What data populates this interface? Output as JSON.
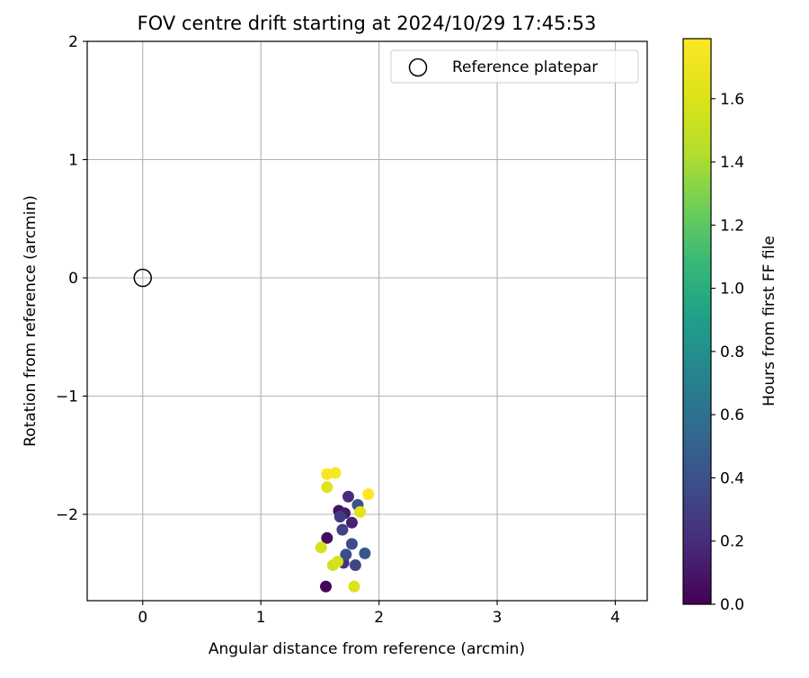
{
  "chart_data": {
    "type": "scatter",
    "title": "FOV centre drift starting at 2024/10/29 17:45:53",
    "xlabel": "Angular distance from reference (arcmin)",
    "ylabel": "Rotation from reference (arcmin)",
    "xlim": [
      -0.47,
      4.27
    ],
    "ylim": [
      -2.73,
      2.0
    ],
    "xticks": [
      0,
      1,
      2,
      3,
      4
    ],
    "yticks": [
      -2,
      -1,
      0,
      1,
      2
    ],
    "x_tick_labels": [
      "0",
      "1",
      "2",
      "3",
      "4"
    ],
    "y_tick_labels": [
      "−2",
      "−1",
      "0",
      "1",
      "2"
    ],
    "grid": true,
    "legend": {
      "position": "top-right",
      "entries": [
        {
          "label": "Reference platepar",
          "marker": "open-circle"
        }
      ]
    },
    "reference_point": {
      "x": 0,
      "y": 0,
      "label": "Reference platepar"
    },
    "colorbar": {
      "label": "Hours from first FF file",
      "min": 0.0,
      "max": 1.79,
      "colormap": "viridis",
      "ticks": [
        0.0,
        0.2,
        0.4,
        0.6,
        0.8,
        1.0,
        1.2,
        1.4,
        1.6
      ],
      "tick_labels": [
        "0.0",
        "0.2",
        "0.4",
        "0.6",
        "0.8",
        "1.0",
        "1.2",
        "1.4",
        "1.6"
      ]
    },
    "series": [
      {
        "points": [
          {
            "x": 1.55,
            "y": -2.61,
            "c": 0.02
          },
          {
            "x": 1.56,
            "y": -2.2,
            "c": 0.05
          },
          {
            "x": 1.66,
            "y": -1.97,
            "c": 0.08
          },
          {
            "x": 1.71,
            "y": -1.99,
            "c": 0.12
          },
          {
            "x": 1.77,
            "y": -2.07,
            "c": 0.15
          },
          {
            "x": 1.74,
            "y": -1.85,
            "c": 0.2
          },
          {
            "x": 1.7,
            "y": -2.41,
            "c": 0.24
          },
          {
            "x": 1.67,
            "y": -2.02,
            "c": 0.28
          },
          {
            "x": 1.69,
            "y": -2.13,
            "c": 0.31
          },
          {
            "x": 1.8,
            "y": -2.43,
            "c": 0.33
          },
          {
            "x": 1.77,
            "y": -2.25,
            "c": 0.36
          },
          {
            "x": 1.72,
            "y": -2.34,
            "c": 0.38
          },
          {
            "x": 1.82,
            "y": -1.92,
            "c": 0.41
          },
          {
            "x": 1.88,
            "y": -2.33,
            "c": 0.44
          },
          {
            "x": 1.61,
            "y": -2.43,
            "c": 1.55
          },
          {
            "x": 1.51,
            "y": -2.28,
            "c": 1.57
          },
          {
            "x": 1.65,
            "y": -2.4,
            "c": 1.58
          },
          {
            "x": 1.79,
            "y": -2.61,
            "c": 1.6
          },
          {
            "x": 1.56,
            "y": -1.77,
            "c": 1.62
          },
          {
            "x": 1.84,
            "y": -1.98,
            "c": 1.64
          },
          {
            "x": 1.56,
            "y": -1.66,
            "c": 1.76
          },
          {
            "x": 1.63,
            "y": -1.65,
            "c": 1.77
          },
          {
            "x": 1.91,
            "y": -1.83,
            "c": 1.78
          }
        ]
      }
    ]
  }
}
